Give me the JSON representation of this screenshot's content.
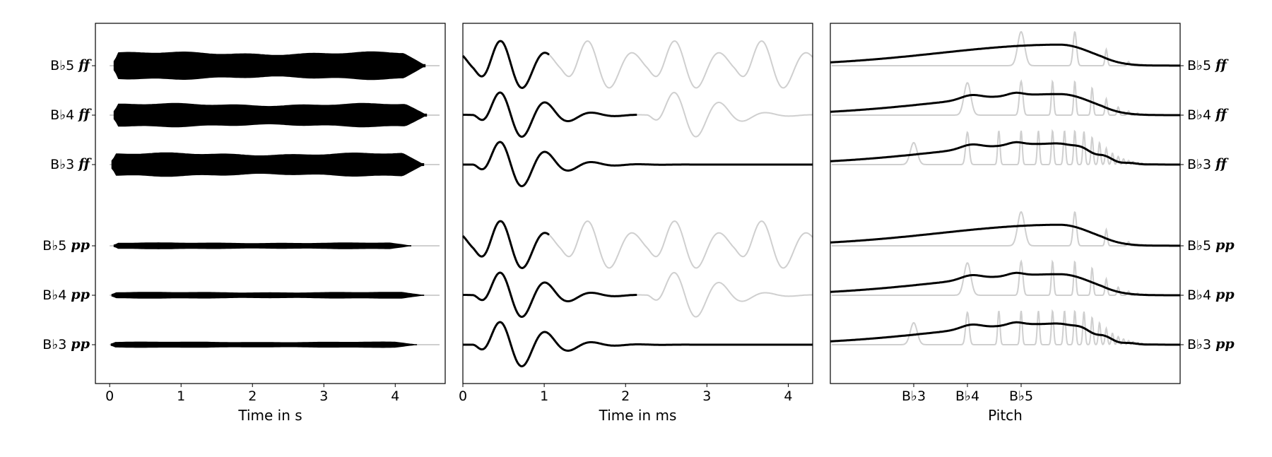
{
  "chart_data": [
    {
      "type": "line",
      "panel": "waveform-envelope",
      "xlabel": "Time in s",
      "xticks": [
        0,
        1,
        2,
        3,
        4
      ],
      "xlim": [
        -0.2,
        4.7
      ],
      "rows": [
        {
          "label": "B♭5",
          "dynamic": "ff",
          "start": 0.06,
          "end": 4.42,
          "amplitude": 1.0
        },
        {
          "label": "B♭4",
          "dynamic": "ff",
          "start": 0.06,
          "end": 4.44,
          "amplitude": 0.85
        },
        {
          "label": "B♭3",
          "dynamic": "ff",
          "start": 0.03,
          "end": 4.4,
          "amplitude": 0.85
        },
        {
          "label": "B♭5",
          "dynamic": "pp",
          "start": 0.06,
          "end": 4.22,
          "amplitude": 0.22
        },
        {
          "label": "B♭4",
          "dynamic": "pp",
          "start": 0.03,
          "end": 4.4,
          "amplitude": 0.22
        },
        {
          "label": "B♭3",
          "dynamic": "pp",
          "start": 0.02,
          "end": 4.3,
          "amplitude": 0.2
        }
      ]
    },
    {
      "type": "line",
      "panel": "impulse-response",
      "xlabel": "Time in ms",
      "xticks": [
        0,
        1,
        2,
        3,
        4
      ],
      "xlim": [
        0,
        4.3
      ],
      "rows": [
        {
          "label": "B♭5",
          "dynamic": "ff",
          "black_end_ms": 1.06,
          "period_ms": 1.07
        },
        {
          "label": "B♭4",
          "dynamic": "ff",
          "black_end_ms": 2.14,
          "period_ms": 2.14
        },
        {
          "label": "B♭3",
          "dynamic": "ff",
          "black_end_ms": 4.3,
          "period_ms": 4.28
        },
        {
          "label": "B♭5",
          "dynamic": "pp",
          "black_end_ms": 1.06,
          "period_ms": 1.07
        },
        {
          "label": "B♭4",
          "dynamic": "pp",
          "black_end_ms": 2.14,
          "period_ms": 2.14
        },
        {
          "label": "B♭3",
          "dynamic": "pp",
          "black_end_ms": 4.3,
          "period_ms": 4.28
        }
      ]
    },
    {
      "type": "line",
      "panel": "spectrum",
      "xlabel": "Pitch",
      "xticks": [
        "B♭3",
        "B♭4",
        "B♭5"
      ],
      "rows": [
        {
          "label": "B♭5",
          "dynamic": "ff"
        },
        {
          "label": "B♭4",
          "dynamic": "ff"
        },
        {
          "label": "B♭3",
          "dynamic": "ff"
        },
        {
          "label": "B♭5",
          "dynamic": "pp"
        },
        {
          "label": "B♭4",
          "dynamic": "pp"
        },
        {
          "label": "B♭3",
          "dynamic": "pp"
        }
      ]
    }
  ]
}
